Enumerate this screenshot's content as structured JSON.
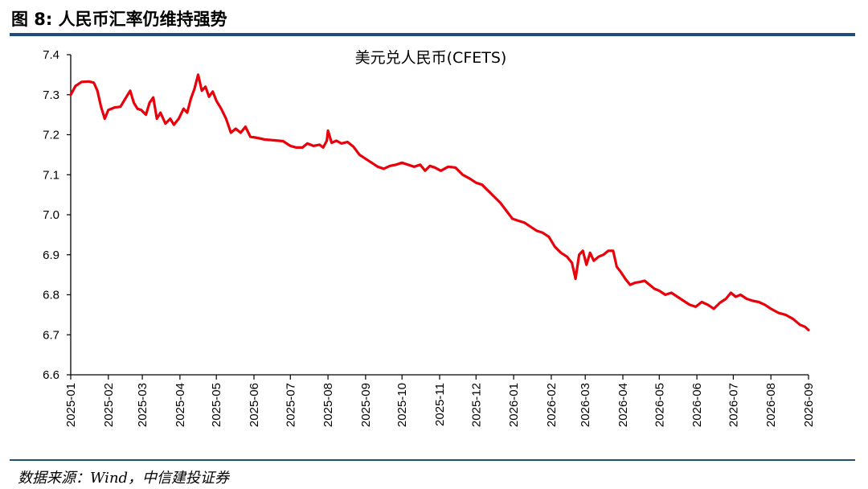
{
  "figure": {
    "title": "图 8:  人民币汇率仍维持强势",
    "source": "数据来源：Wind，中信建投证券"
  },
  "colors": {
    "line": "#e8000b",
    "rule": "#1f4e79",
    "axis": "#000000"
  },
  "chart_data": {
    "type": "line",
    "title": "美元兑人民币(CFETS)",
    "xlabel": "",
    "ylabel": "",
    "ylim": [
      6.6,
      7.4
    ],
    "yticks": [
      "6.6",
      "6.7",
      "6.8",
      "6.9",
      "7.0",
      "7.1",
      "7.2",
      "7.3",
      "7.4"
    ],
    "xticks": [
      "2025-01",
      "2025-02",
      "2025-03",
      "2025-04",
      "2025-05",
      "2025-06",
      "2025-07",
      "2025-08",
      "2025-09",
      "2025-10",
      "2025-11",
      "2025-12",
      "2026-01",
      "2026-02",
      "2026-03",
      "2026-04",
      "2026-05",
      "2026-06",
      "2026-07",
      "2026-08",
      "2026-09"
    ],
    "grid": false,
    "legend": "none",
    "series": [
      {
        "values": [
          [
            "2025-01-01",
            7.3
          ],
          [
            "2025-01-05",
            7.322
          ],
          [
            "2025-01-10",
            7.332
          ],
          [
            "2025-01-16",
            7.333
          ],
          [
            "2025-01-20",
            7.33
          ],
          [
            "2025-01-23",
            7.31
          ],
          [
            "2025-01-26",
            7.27
          ],
          [
            "2025-01-29",
            7.24
          ],
          [
            "2025-02-01",
            7.262
          ],
          [
            "2025-02-06",
            7.268
          ],
          [
            "2025-02-11",
            7.27
          ],
          [
            "2025-02-15",
            7.29
          ],
          [
            "2025-02-19",
            7.31
          ],
          [
            "2025-02-22",
            7.28
          ],
          [
            "2025-02-25",
            7.265
          ],
          [
            "2025-02-28",
            7.262
          ],
          [
            "2025-03-04",
            7.25
          ],
          [
            "2025-03-07",
            7.28
          ],
          [
            "2025-03-10",
            7.293
          ],
          [
            "2025-03-13",
            7.24
          ],
          [
            "2025-03-16",
            7.255
          ],
          [
            "2025-03-20",
            7.228
          ],
          [
            "2025-03-24",
            7.24
          ],
          [
            "2025-03-27",
            7.225
          ],
          [
            "2025-03-31",
            7.24
          ],
          [
            "2025-04-04",
            7.265
          ],
          [
            "2025-04-07",
            7.255
          ],
          [
            "2025-04-10",
            7.29
          ],
          [
            "2025-04-13",
            7.315
          ],
          [
            "2025-04-16",
            7.35
          ],
          [
            "2025-04-19",
            7.31
          ],
          [
            "2025-04-22",
            7.32
          ],
          [
            "2025-04-25",
            7.295
          ],
          [
            "2025-04-28",
            7.308
          ],
          [
            "2025-05-01",
            7.285
          ],
          [
            "2025-05-05",
            7.265
          ],
          [
            "2025-05-09",
            7.24
          ],
          [
            "2025-05-13",
            7.205
          ],
          [
            "2025-05-17",
            7.215
          ],
          [
            "2025-05-21",
            7.205
          ],
          [
            "2025-05-25",
            7.22
          ],
          [
            "2025-05-29",
            7.195
          ],
          [
            "2025-06-04",
            7.192
          ],
          [
            "2025-06-10",
            7.188
          ],
          [
            "2025-06-18",
            7.186
          ],
          [
            "2025-06-25",
            7.184
          ],
          [
            "2025-07-01",
            7.172
          ],
          [
            "2025-07-06",
            7.168
          ],
          [
            "2025-07-11",
            7.168
          ],
          [
            "2025-07-15",
            7.178
          ],
          [
            "2025-07-20",
            7.172
          ],
          [
            "2025-07-25",
            7.175
          ],
          [
            "2025-07-28",
            7.168
          ],
          [
            "2025-07-31",
            7.185
          ],
          [
            "2025-08-01",
            7.21
          ],
          [
            "2025-08-04",
            7.18
          ],
          [
            "2025-08-08",
            7.185
          ],
          [
            "2025-08-12",
            7.178
          ],
          [
            "2025-08-17",
            7.182
          ],
          [
            "2025-08-22",
            7.17
          ],
          [
            "2025-08-27",
            7.15
          ],
          [
            "2025-09-01",
            7.14
          ],
          [
            "2025-09-06",
            7.13
          ],
          [
            "2025-09-11",
            7.12
          ],
          [
            "2025-09-16",
            7.115
          ],
          [
            "2025-09-21",
            7.122
          ],
          [
            "2025-09-26",
            7.125
          ],
          [
            "2025-10-01",
            7.13
          ],
          [
            "2025-10-06",
            7.125
          ],
          [
            "2025-10-11",
            7.12
          ],
          [
            "2025-10-16",
            7.125
          ],
          [
            "2025-10-20",
            7.11
          ],
          [
            "2025-10-24",
            7.122
          ],
          [
            "2025-10-28",
            7.118
          ],
          [
            "2025-11-02",
            7.11
          ],
          [
            "2025-11-08",
            7.12
          ],
          [
            "2025-11-14",
            7.118
          ],
          [
            "2025-11-20",
            7.1
          ],
          [
            "2025-11-26",
            7.09
          ],
          [
            "2025-12-01",
            7.08
          ],
          [
            "2025-12-06",
            7.075
          ],
          [
            "2025-12-11",
            7.06
          ],
          [
            "2025-12-16",
            7.045
          ],
          [
            "2025-12-21",
            7.03
          ],
          [
            "2025-12-26",
            7.01
          ],
          [
            "2025-12-31",
            6.99
          ],
          [
            "2026-01-05",
            6.985
          ],
          [
            "2026-01-10",
            6.98
          ],
          [
            "2026-01-15",
            6.97
          ],
          [
            "2026-01-20",
            6.96
          ],
          [
            "2026-01-25",
            6.955
          ],
          [
            "2026-01-30",
            6.945
          ],
          [
            "2026-02-04",
            6.92
          ],
          [
            "2026-02-09",
            6.905
          ],
          [
            "2026-02-14",
            6.895
          ],
          [
            "2026-02-18",
            6.88
          ],
          [
            "2026-02-21",
            6.84
          ],
          [
            "2026-02-24",
            6.9
          ],
          [
            "2026-02-27",
            6.91
          ],
          [
            "2026-03-02",
            6.875
          ],
          [
            "2026-03-05",
            6.905
          ],
          [
            "2026-03-08",
            6.885
          ],
          [
            "2026-03-12",
            6.895
          ],
          [
            "2026-03-16",
            6.9
          ],
          [
            "2026-03-20",
            6.91
          ],
          [
            "2026-03-24",
            6.91
          ],
          [
            "2026-03-27",
            6.87
          ],
          [
            "2026-03-30",
            6.858
          ],
          [
            "2026-04-03",
            6.84
          ],
          [
            "2026-04-07",
            6.825
          ],
          [
            "2026-04-11",
            6.83
          ],
          [
            "2026-04-15",
            6.832
          ],
          [
            "2026-04-19",
            6.835
          ],
          [
            "2026-04-23",
            6.825
          ],
          [
            "2026-04-27",
            6.815
          ],
          [
            "2026-05-01",
            6.81
          ],
          [
            "2026-05-06",
            6.8
          ],
          [
            "2026-05-11",
            6.805
          ],
          [
            "2026-05-16",
            6.795
          ],
          [
            "2026-05-21",
            6.785
          ],
          [
            "2026-05-26",
            6.775
          ],
          [
            "2026-05-31",
            6.77
          ],
          [
            "2026-06-05",
            6.782
          ],
          [
            "2026-06-10",
            6.775
          ],
          [
            "2026-06-15",
            6.765
          ],
          [
            "2026-06-20",
            6.78
          ],
          [
            "2026-06-25",
            6.79
          ],
          [
            "2026-06-29",
            6.805
          ],
          [
            "2026-07-03",
            6.795
          ],
          [
            "2026-07-07",
            6.8
          ],
          [
            "2026-07-12",
            6.79
          ],
          [
            "2026-07-17",
            6.785
          ],
          [
            "2026-07-22",
            6.782
          ],
          [
            "2026-07-27",
            6.775
          ],
          [
            "2026-08-01",
            6.765
          ],
          [
            "2026-08-07",
            6.755
          ],
          [
            "2026-08-13",
            6.75
          ],
          [
            "2026-08-19",
            6.74
          ],
          [
            "2026-08-25",
            6.725
          ],
          [
            "2026-08-29",
            6.72
          ],
          [
            "2026-09-01",
            6.712
          ]
        ]
      }
    ]
  }
}
